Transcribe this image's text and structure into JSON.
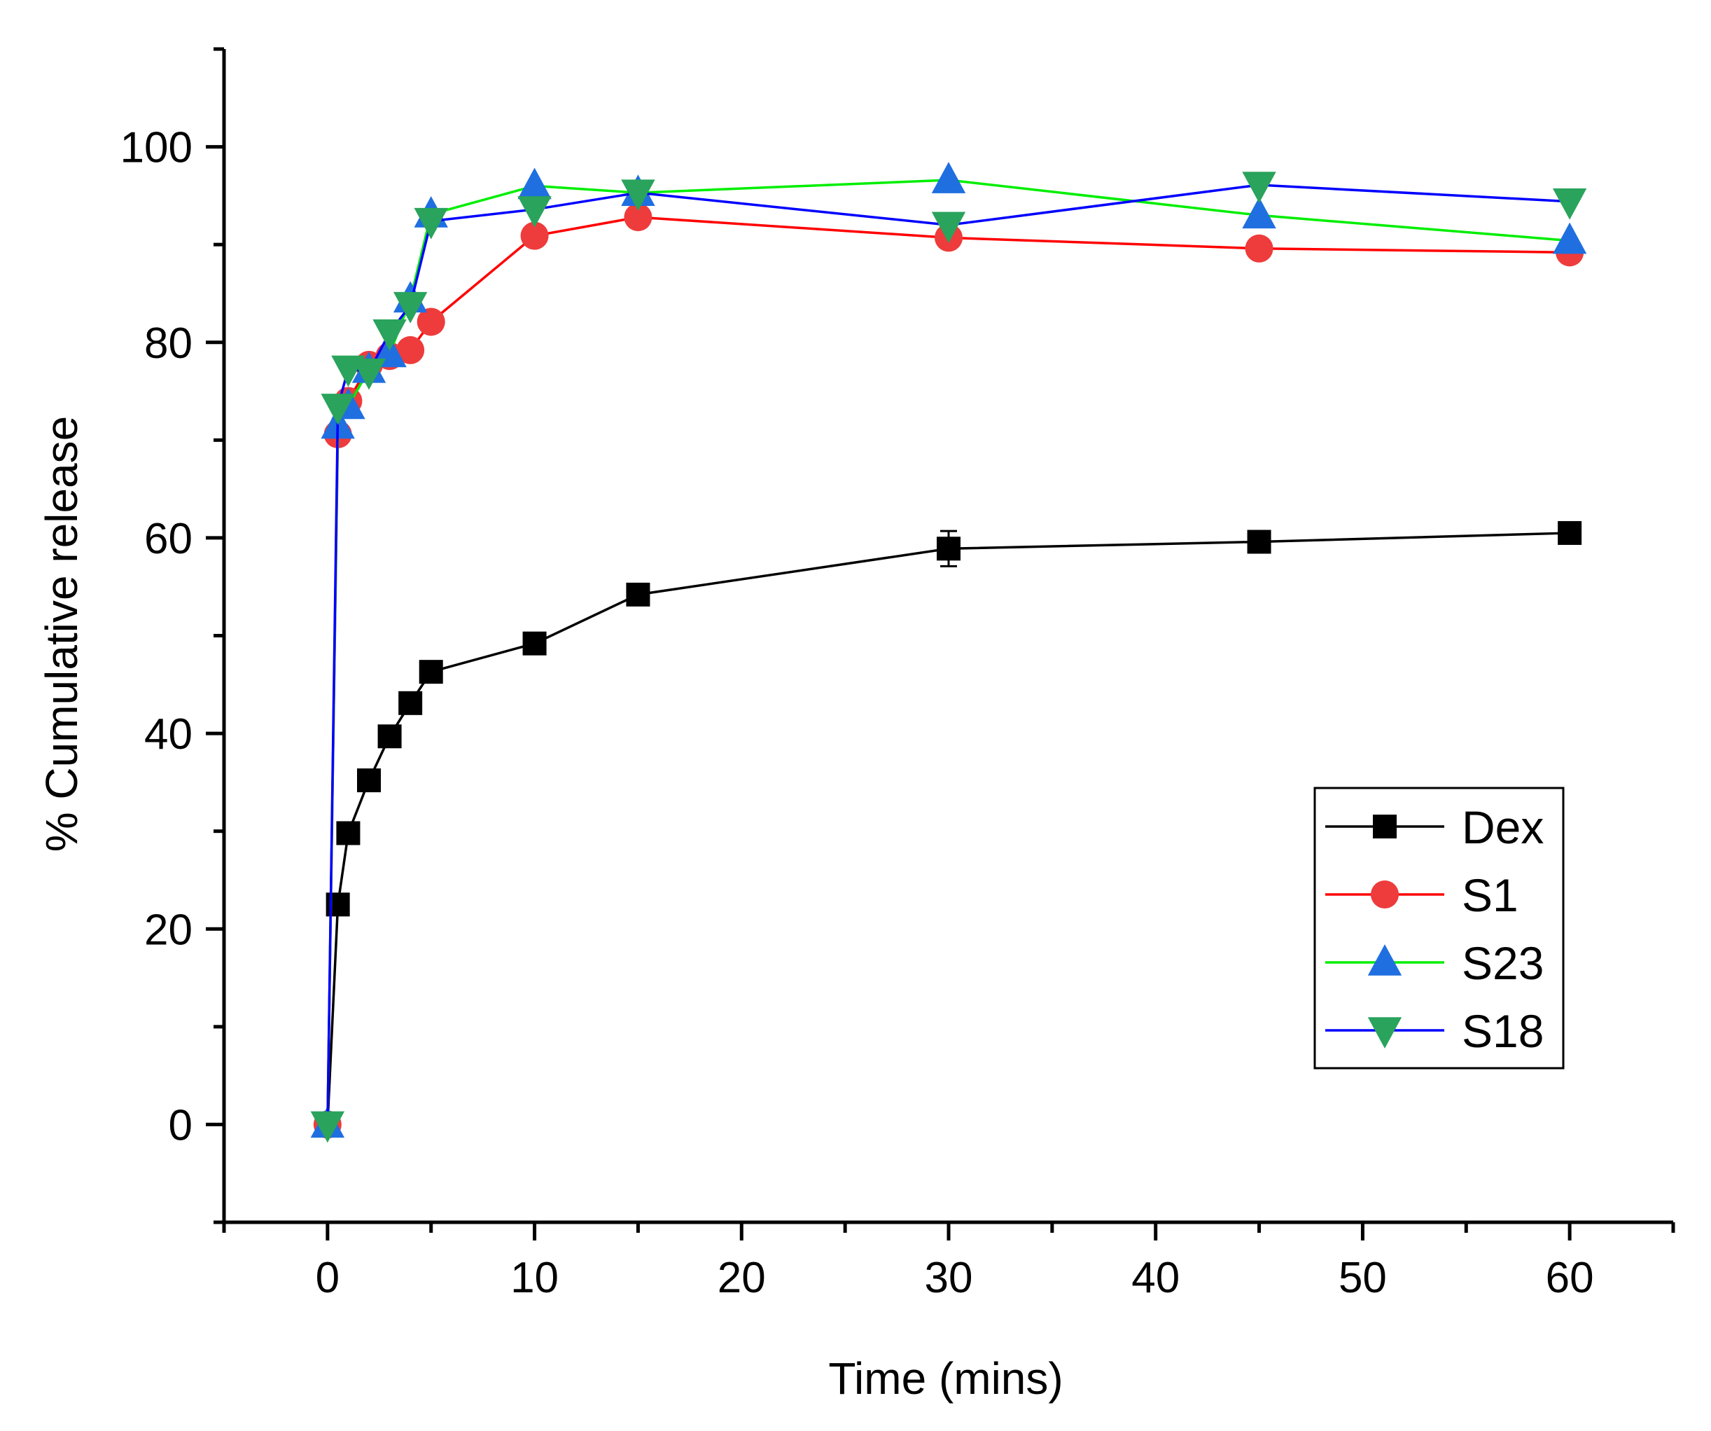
{
  "chart_data": {
    "type": "line",
    "xlabel": "Time (mins)",
    "ylabel": "% Cumulative release",
    "xlim": [
      -5,
      65
    ],
    "ylim": [
      -10,
      110
    ],
    "x_ticks": [
      0,
      10,
      20,
      30,
      40,
      50,
      60
    ],
    "y_ticks": [
      0,
      20,
      40,
      60,
      80,
      100
    ],
    "grid": false,
    "legend_position": "bottom-right",
    "series": [
      {
        "name": "Dex",
        "color": "#000000",
        "marker_fill": "#000000",
        "marker": "square",
        "x": [
          0,
          0.5,
          1,
          2,
          3,
          4,
          5,
          10,
          15,
          30,
          45,
          60
        ],
        "y": [
          0,
          22.5,
          29.8,
          35.2,
          39.7,
          43.1,
          46.3,
          49.2,
          54.2,
          58.9,
          59.6,
          60.5
        ],
        "err": [
          0,
          0,
          0,
          0,
          0,
          0,
          0,
          0,
          0,
          1.8,
          0,
          0
        ]
      },
      {
        "name": "S1",
        "color": "#ff0000",
        "marker_fill": "#ee3b3b",
        "marker": "circle",
        "x": [
          0,
          0.5,
          1,
          2,
          3,
          4,
          5,
          10,
          15,
          30,
          45,
          60
        ],
        "y": [
          0,
          70.6,
          74.0,
          77.7,
          78.6,
          79.2,
          82.1,
          90.9,
          92.8,
          90.7,
          89.6,
          89.2
        ],
        "err": [
          0,
          0,
          0,
          0,
          0,
          0,
          0,
          0,
          0,
          0,
          0,
          0
        ]
      },
      {
        "name": "S23",
        "color": "#00ee00",
        "marker_fill": "#1f6fe0",
        "marker": "triangle-up",
        "x": [
          0,
          0.5,
          1,
          2,
          3,
          4,
          5,
          10,
          15,
          30,
          45,
          60
        ],
        "y": [
          0,
          71.5,
          73.5,
          77.2,
          78.8,
          84.4,
          93.1,
          96.0,
          95.3,
          96.6,
          93.0,
          90.4
        ],
        "err": [
          0,
          0,
          0,
          0,
          0,
          0,
          0,
          0,
          0,
          0,
          0,
          0
        ]
      },
      {
        "name": "S18",
        "color": "#0000ff",
        "marker_fill": "#2aa35c",
        "marker": "triangle-down",
        "x": [
          0,
          0.5,
          1,
          2,
          3,
          4,
          5,
          10,
          15,
          30,
          45,
          60
        ],
        "y": [
          0,
          73.4,
          77.3,
          77.0,
          81.0,
          83.8,
          92.4,
          93.6,
          95.3,
          92.0,
          96.1,
          94.4
        ],
        "err": [
          0,
          0,
          0,
          0,
          0,
          0,
          0,
          0,
          0,
          0,
          0,
          0
        ]
      }
    ]
  }
}
